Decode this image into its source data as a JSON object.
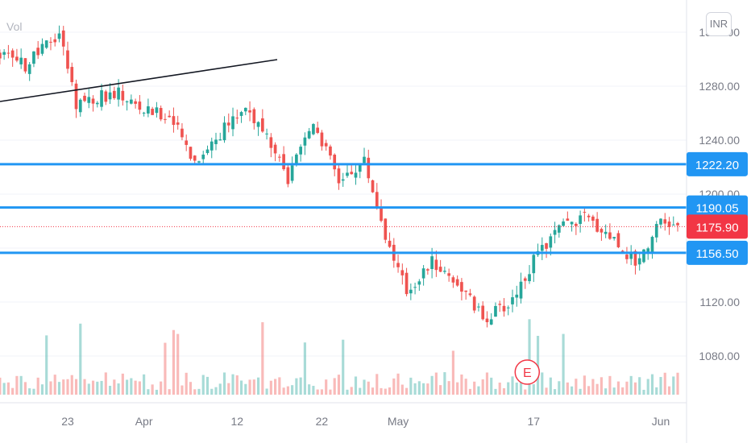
{
  "header": {
    "volume_label": "Vol",
    "currency_button": "INR"
  },
  "chart_data": {
    "type": "candlestick",
    "series": [
      {
        "name": "",
        "type": "candlestick"
      },
      {
        "name": "",
        "type": "volume"
      }
    ],
    "y_ticks": [
      "1320.00",
      "1280.00",
      "1240.00",
      "1200.00",
      "1160.00",
      "1120.00",
      "1080.00"
    ],
    "x_ticks": [
      "23",
      "Apr",
      "12",
      "22",
      "May",
      "17",
      "Jun"
    ],
    "ylim": [
      1052,
      1338
    ],
    "horizontal_levels": [
      {
        "value": 1222.2,
        "label": "1222.20",
        "color": "#2196f3"
      },
      {
        "value": 1190.05,
        "label": "1190.05",
        "color": "#2196f3"
      },
      {
        "value": 1156.5,
        "label": "1156.50",
        "color": "#2196f3"
      }
    ],
    "last_price": {
      "value": 1175.9,
      "label": "1175.90",
      "color": "#f23645"
    },
    "trendline": {
      "start": {
        "date": "Mar 11",
        "price": 1271
      },
      "end": {
        "date": "Apr 19",
        "price": 1298
      }
    },
    "earnings_marker": {
      "label": "E",
      "date": "May 17"
    },
    "ohlc_keypoints": [
      [
        "Mar 10",
        1318
      ],
      [
        "Mar 14",
        1305
      ],
      [
        "Mar 18",
        1295
      ],
      [
        "Mar 22",
        1320
      ],
      [
        "Mar 24",
        1268
      ],
      [
        "Mar 29",
        1275
      ],
      [
        "Apr 1",
        1262
      ],
      [
        "Apr 4",
        1258
      ],
      [
        "Apr 7",
        1225
      ],
      [
        "Apr 10",
        1245
      ],
      [
        "Apr 13",
        1266
      ],
      [
        "Apr 16",
        1235
      ],
      [
        "Apr 18",
        1210
      ],
      [
        "Apr 21",
        1255
      ],
      [
        "Apr 24",
        1210
      ],
      [
        "Apr 27",
        1225
      ],
      [
        "Apr 30",
        1160
      ],
      [
        "May 2",
        1128
      ],
      [
        "May 5",
        1150
      ],
      [
        "May 8",
        1135
      ],
      [
        "May 11",
        1108
      ],
      [
        "May 14",
        1118
      ],
      [
        "May 17",
        1150
      ],
      [
        "May 20",
        1175
      ],
      [
        "May 23",
        1183
      ],
      [
        "May 26",
        1170
      ],
      [
        "May 29",
        1150
      ],
      [
        "Jun 1",
        1178
      ],
      [
        "Jun 3",
        1176
      ]
    ],
    "colors": {
      "up": "#26a69a",
      "down": "#ef5350",
      "level": "#2196f3",
      "last": "#f23645"
    },
    "grid": true,
    "legend": "none"
  }
}
